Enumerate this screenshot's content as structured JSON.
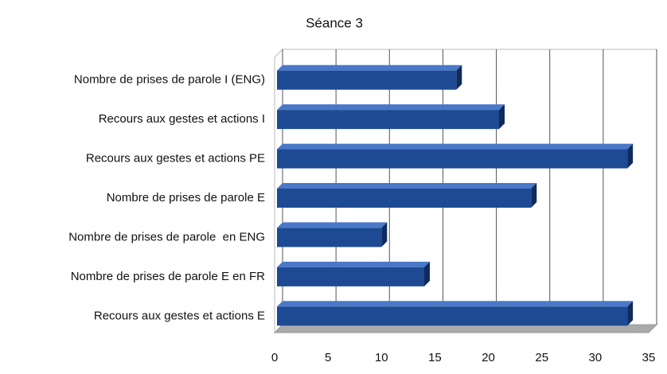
{
  "chart_data": {
    "type": "bar3d_horizontal",
    "title": "Séance 3",
    "categories": [
      "Nombre de prises de parole I (ENG)",
      "Recours aux gestes et actions I",
      "Recours aux gestes et actions PE",
      "Nombre de prises de parole E",
      "Nombre de prises de parole  en ENG",
      "Nombre de prises de parole E en FR",
      "Recours aux gestes et actions E"
    ],
    "values": [
      17,
      21,
      33,
      24,
      10,
      14,
      33
    ],
    "color": "#1d4a93",
    "xlim": [
      0,
      35
    ],
    "xticks": [
      0,
      5,
      10,
      15,
      20,
      25,
      30,
      35
    ],
    "grid": true
  }
}
